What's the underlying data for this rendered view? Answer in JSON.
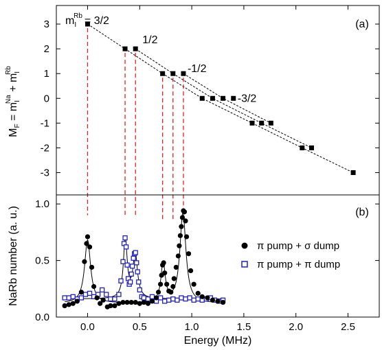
{
  "chart_data": [
    {
      "panel_label": "(a)",
      "type": "scatter",
      "ylabel": {
        "main": "M",
        "main_sub": "F",
        "eq": " = m",
        "a_sub": "I",
        "a_sup": "Na",
        "plus": " + m",
        "b_sub": "I",
        "b_sup": "Rb"
      },
      "ylim": [
        -3.9,
        3.75
      ],
      "yticks": [
        "3",
        "2",
        "1",
        "0",
        "-1",
        "-2",
        "-3"
      ],
      "annotations": [
        {
          "text": "= 3/2",
          "prefix": "m",
          "prefix_sub": "I",
          "prefix_sup": "Rb"
        },
        {
          "text": "1/2"
        },
        {
          "text": "-1/2"
        },
        {
          "text": "-3/2"
        }
      ],
      "levels": [
        {
          "mf": 3,
          "x": [
            0.0
          ]
        },
        {
          "mf": 2,
          "x": [
            0.36,
            0.46
          ]
        },
        {
          "mf": 1,
          "x": [
            0.72,
            0.82,
            0.92
          ]
        },
        {
          "mf": 0,
          "x": [
            1.1,
            1.2,
            1.3,
            1.4
          ]
        },
        {
          "mf": -1,
          "x": [
            1.58,
            1.67,
            1.76
          ]
        },
        {
          "mf": -2,
          "x": [
            2.06,
            2.15
          ]
        },
        {
          "mf": -3,
          "x": [
            2.55
          ]
        }
      ],
      "dashed_chains": [
        [
          [
            0.0,
            3
          ],
          [
            0.36,
            2
          ],
          [
            0.72,
            1
          ],
          [
            1.1,
            0
          ],
          [
            1.58,
            -1
          ],
          [
            2.06,
            -2
          ],
          [
            2.55,
            -3
          ]
        ],
        [
          [
            0.46,
            2
          ],
          [
            0.82,
            1
          ],
          [
            1.2,
            0
          ],
          [
            1.67,
            -1
          ],
          [
            2.15,
            -2
          ]
        ],
        [
          [
            0.92,
            1
          ],
          [
            1.3,
            0
          ],
          [
            1.76,
            -1
          ]
        ]
      ],
      "red_markers_x": [
        0.0,
        0.36,
        0.46,
        0.72,
        0.82,
        0.92
      ]
    },
    {
      "panel_label": "(b)",
      "type": "scatter",
      "xlabel": "Energy (MHz)",
      "ylabel": "NaRb number (a. u.)",
      "xlim": [
        -0.3,
        2.8
      ],
      "ylim": [
        0.0,
        1.08
      ],
      "xticks": [
        "0.0",
        "0.5",
        "1.0",
        "1.5",
        "2.0",
        "2.5"
      ],
      "yticks": [
        "0.0",
        "0.5",
        "1.0"
      ],
      "legend_position": "center-right",
      "series": [
        {
          "name": "π pump + σ dump",
          "marker": "filled-circle",
          "color": "#000000",
          "x": [
            -0.22,
            -0.18,
            -0.14,
            -0.1,
            -0.06,
            -0.03,
            -0.01,
            0.0,
            0.02,
            0.04,
            0.06,
            0.09,
            0.12,
            0.15,
            0.19,
            0.22,
            0.26,
            0.3,
            0.34,
            0.38,
            0.42,
            0.46,
            0.5,
            0.54,
            0.58,
            0.62,
            0.66,
            0.68,
            0.7,
            0.71,
            0.72,
            0.73,
            0.74,
            0.76,
            0.78,
            0.8,
            0.82,
            0.83,
            0.85,
            0.87,
            0.88,
            0.89,
            0.9,
            0.91,
            0.92,
            0.93,
            0.94,
            0.95,
            0.97,
            0.99,
            1.02,
            1.06,
            1.1,
            1.15,
            1.2,
            1.25,
            1.3
          ],
          "y": [
            0.1,
            0.11,
            0.12,
            0.14,
            0.22,
            0.49,
            0.65,
            0.71,
            0.62,
            0.44,
            0.27,
            0.17,
            0.12,
            0.15,
            0.09,
            0.1,
            0.1,
            0.12,
            0.13,
            0.13,
            0.13,
            0.13,
            0.12,
            0.13,
            0.12,
            0.14,
            0.17,
            0.22,
            0.29,
            0.37,
            0.46,
            0.48,
            0.39,
            0.29,
            0.23,
            0.22,
            0.27,
            0.34,
            0.44,
            0.54,
            0.63,
            0.72,
            0.8,
            0.88,
            0.94,
            0.93,
            0.85,
            0.71,
            0.56,
            0.41,
            0.29,
            0.21,
            0.18,
            0.17,
            0.15,
            0.14,
            0.13
          ],
          "fit_curve": true
        },
        {
          "name": "π pump + π dump",
          "marker": "open-square",
          "color": "#1f1fbf",
          "x": [
            -0.22,
            -0.18,
            -0.14,
            -0.1,
            -0.06,
            -0.02,
            0.02,
            0.06,
            0.1,
            0.14,
            0.18,
            0.22,
            0.26,
            0.3,
            0.32,
            0.34,
            0.35,
            0.36,
            0.37,
            0.38,
            0.39,
            0.4,
            0.41,
            0.42,
            0.43,
            0.44,
            0.45,
            0.46,
            0.47,
            0.48,
            0.49,
            0.5,
            0.52,
            0.54,
            0.58,
            0.62,
            0.66,
            0.7,
            0.74,
            0.78,
            0.82,
            0.86,
            0.9,
            0.94,
            0.98,
            1.02,
            1.06,
            1.1,
            1.14,
            1.18,
            1.22,
            1.26,
            1.3
          ],
          "y": [
            0.17,
            0.17,
            0.18,
            0.16,
            0.17,
            0.2,
            0.21,
            0.18,
            0.2,
            0.24,
            0.2,
            0.16,
            0.16,
            0.2,
            0.32,
            0.49,
            0.65,
            0.7,
            0.62,
            0.46,
            0.34,
            0.29,
            0.31,
            0.38,
            0.45,
            0.52,
            0.56,
            0.57,
            0.48,
            0.4,
            0.31,
            0.24,
            0.18,
            0.17,
            0.16,
            0.18,
            0.14,
            0.17,
            0.14,
            0.15,
            0.16,
            0.15,
            0.17,
            0.16,
            0.17,
            0.15,
            0.16,
            0.15,
            0.16,
            0.17,
            0.15,
            0.14,
            0.15
          ],
          "fit_curve": true
        }
      ]
    }
  ]
}
